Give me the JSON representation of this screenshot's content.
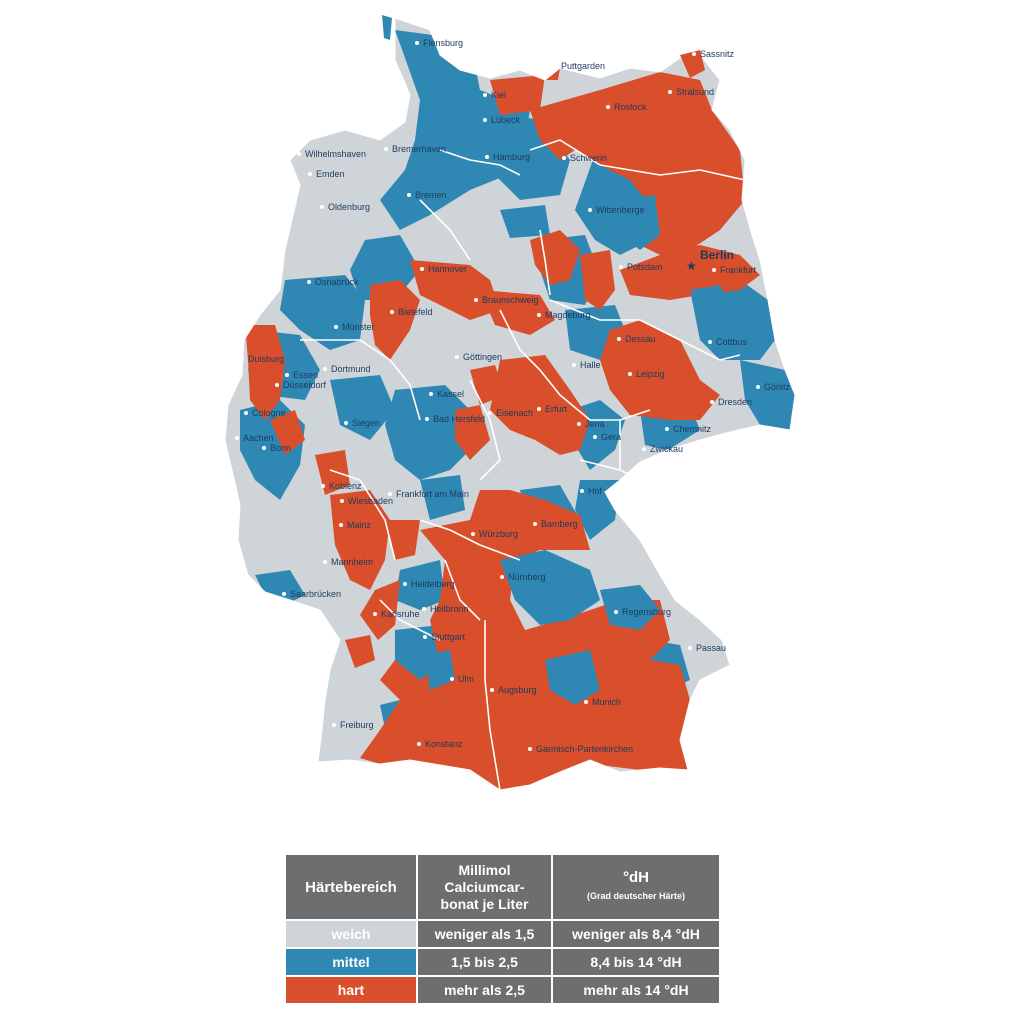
{
  "colors": {
    "weich": "#cfd4d8",
    "mittel": "#2f88b4",
    "hart": "#d94f2b",
    "table_header": "#6d6e70",
    "label_text": "#1e3a5f"
  },
  "map": {
    "capital": "Berlin",
    "cities": [
      "Flensburg",
      "Sassnitz",
      "Puttgarden",
      "Kiel",
      "Stralsund",
      "Rostock",
      "Lübeck",
      "Wilhelmshaven",
      "Bremerhaven",
      "Hamburg",
      "Schwerin",
      "Emden",
      "Bremen",
      "Oldenburg",
      "Wittenberge",
      "Potsdam",
      "Frankfurt",
      "Hannover",
      "Osnabrück",
      "Braunschweig",
      "Bielefeld",
      "Magdeburg",
      "Münster",
      "Dessau",
      "Cottbus",
      "Duisburg",
      "Göttingen",
      "Halle",
      "Dortmund",
      "Essen",
      "Düsseldorf",
      "Leipzig",
      "Görlitz",
      "Kassel",
      "Cologne",
      "Siegen",
      "Dresden",
      "Bad Hersfeld",
      "Eisenach",
      "Erfurt",
      "Aachen",
      "Jena",
      "Gera",
      "Chemnitz",
      "Bonn",
      "Zwickau",
      "Koblenz",
      "Frankfurt am Main",
      "Hof",
      "Wiesbaden",
      "Mainz",
      "Bamberg",
      "Würzburg",
      "Mannheim",
      "Nürnberg",
      "Heidelberg",
      "Saarbrücken",
      "Regensburg",
      "Heilbronn",
      "Karlsruhe",
      "Stuttgart",
      "Passau",
      "Ulm",
      "Augsburg",
      "Munich",
      "Freiburg",
      "Konstanz",
      "Garmisch-Partenkirchen"
    ]
  },
  "legend": {
    "header": {
      "col1": "Härtebereich",
      "col2_line1": "Millimol",
      "col2_line2": "Calciumcar-",
      "col2_line3": "bonat je Liter",
      "col3": "°dH",
      "col3_sub": "(Grad deutscher Härte)"
    },
    "rows": [
      {
        "level": "weich",
        "mmol": "weniger als 1,5",
        "dh": "weniger als 8,4 °dH"
      },
      {
        "level": "mittel",
        "mmol": "1,5 bis 2,5",
        "dh": "8,4 bis 14 °dH"
      },
      {
        "level": "hart",
        "mmol": "mehr als 2,5",
        "dh": "mehr als 14 °dH"
      }
    ]
  }
}
